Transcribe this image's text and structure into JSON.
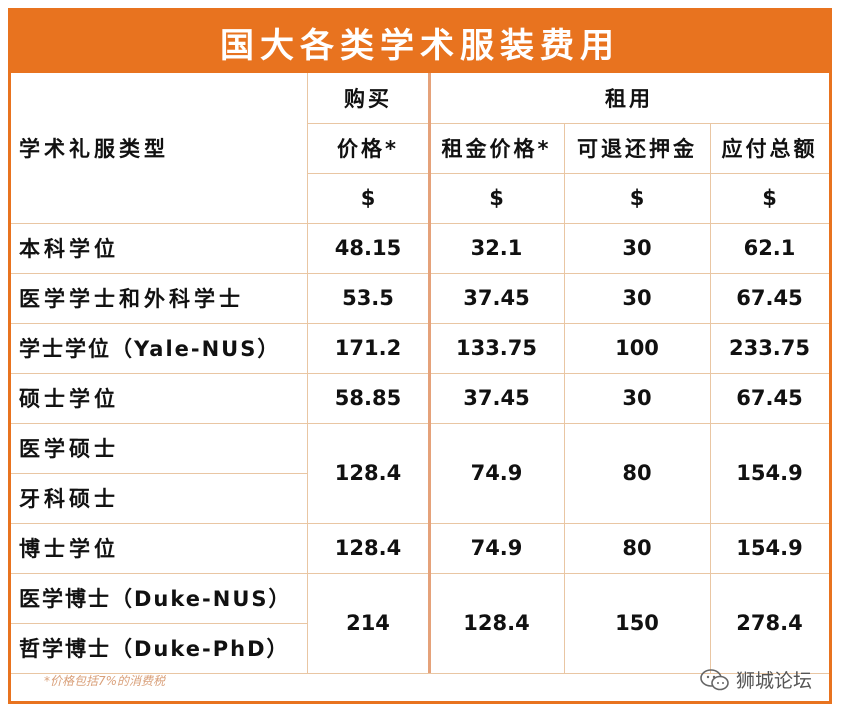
{
  "title": "国大各类学术服装费用",
  "headers": {
    "type_col": "学术礼服类型",
    "buy_group": "购买",
    "rent_group": "租用",
    "buy_price": "价格*",
    "rent_price": "租金价格*",
    "deposit": "可退还押金",
    "total": "应付总额",
    "currency": "$"
  },
  "rows": [
    {
      "label": "本科学位",
      "buy": "48.15",
      "rent": "32.1",
      "deposit": "30",
      "total": "62.1"
    },
    {
      "label": "医学学士和外科学士",
      "buy": "53.5",
      "rent": "37.45",
      "deposit": "30",
      "total": "67.45"
    },
    {
      "label": "学士学位（Yale-NUS）",
      "buy": "171.2",
      "rent": "133.75",
      "deposit": "100",
      "total": "233.75"
    },
    {
      "label": "硕士学位",
      "buy": "58.85",
      "rent": "37.45",
      "deposit": "30",
      "total": "67.45"
    }
  ],
  "merged1": {
    "labels": [
      "医学硕士",
      "牙科硕士"
    ],
    "buy": "128.4",
    "rent": "74.9",
    "deposit": "80",
    "total": "154.9"
  },
  "row_phd": {
    "label": "博士学位",
    "buy": "128.4",
    "rent": "74.9",
    "deposit": "80",
    "total": "154.9"
  },
  "merged2": {
    "labels": [
      "医学博士（Duke-NUS）",
      "哲学博士（Duke-PhD）"
    ],
    "buy": "214",
    "rent": "128.4",
    "deposit": "150",
    "total": "278.4"
  },
  "footnote": "*价格包括7%的消费税",
  "watermark": "狮城论坛",
  "colors": {
    "accent": "#e8731f",
    "grid": "#e9c6a3"
  }
}
